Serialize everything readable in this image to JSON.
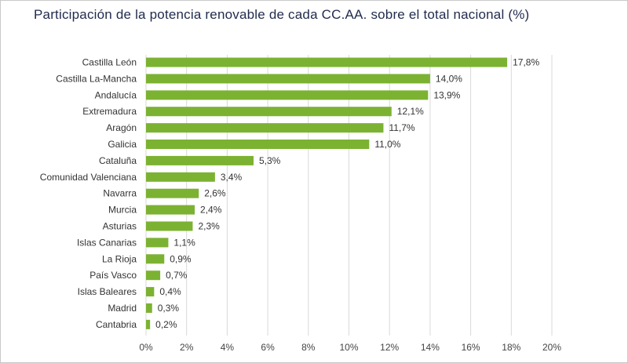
{
  "chart_data": {
    "type": "bar",
    "orientation": "horizontal",
    "title": "Participación de la potencia renovable de cada CC.AA. sobre el total nacional (%)",
    "categories": [
      "Castilla León",
      "Castilla La-Mancha",
      "Andalucía",
      "Extremadura",
      "Aragón",
      "Galicia",
      "Cataluña",
      "Comunidad Valenciana",
      "Navarra",
      "Murcia",
      "Asturias",
      "Islas Canarias",
      "La Rioja",
      "País Vasco",
      "Islas Baleares",
      "Madrid",
      "Cantabria"
    ],
    "values": [
      17.8,
      14.0,
      13.9,
      12.1,
      11.7,
      11.0,
      5.3,
      3.4,
      2.6,
      2.4,
      2.3,
      1.1,
      0.9,
      0.7,
      0.4,
      0.3,
      0.2
    ],
    "value_labels": [
      "17,8%",
      "14,0%",
      "13,9%",
      "12,1%",
      "11,7%",
      "11,0%",
      "5,3%",
      "3,4%",
      "2,6%",
      "2,4%",
      "2,3%",
      "1,1%",
      "0,9%",
      "0,7%",
      "0,4%",
      "0,3%",
      "0,2%"
    ],
    "xlim": [
      0,
      20
    ],
    "xticks": [
      "0%",
      "2%",
      "4%",
      "6%",
      "8%",
      "10%",
      "12%",
      "14%",
      "16%",
      "18%",
      "20%"
    ],
    "bar_color": "#7cb232",
    "grid": "vertical",
    "legend": "none"
  }
}
